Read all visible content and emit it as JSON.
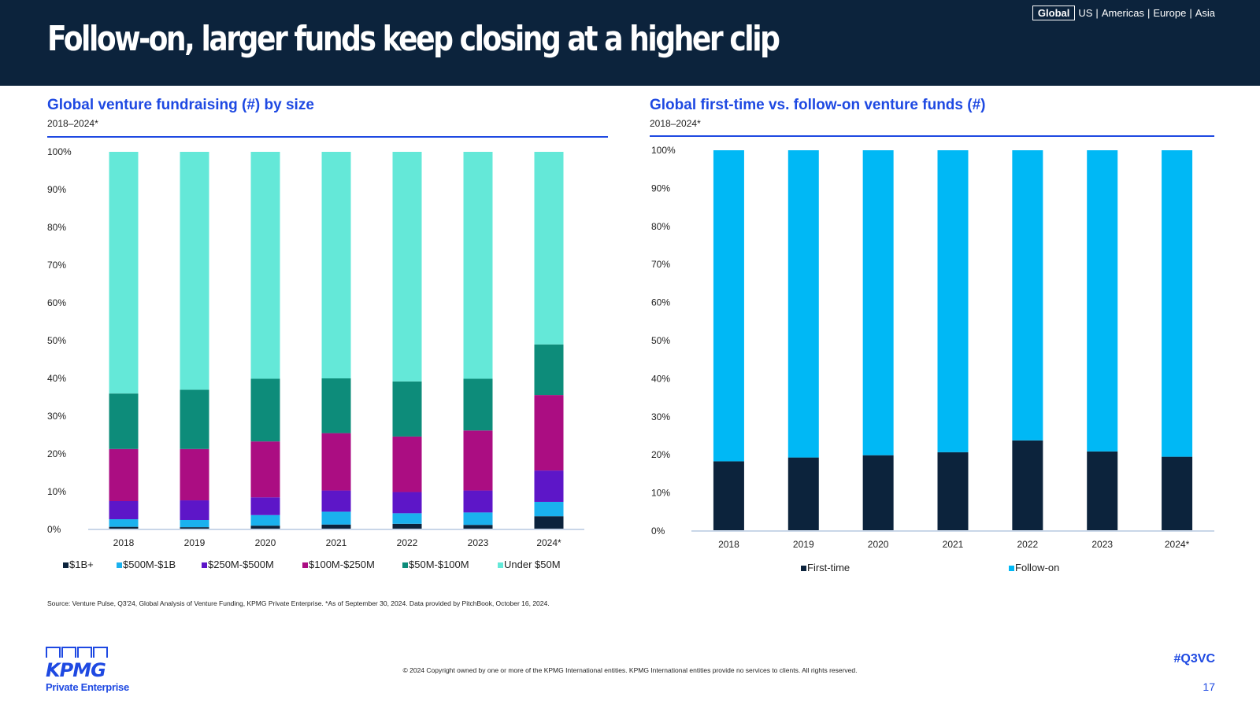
{
  "header": {
    "title": "Follow-on, larger funds keep closing at a higher clip",
    "nav": {
      "active": "Global",
      "items": [
        "US",
        "Americas",
        "Europe",
        "Asia"
      ]
    }
  },
  "left": {
    "title": "Global venture fundraising (#) by size",
    "subtitle": "2018–2024*"
  },
  "right": {
    "title": "Global first-time vs. follow-on venture funds (#)",
    "subtitle": "2018–2024*"
  },
  "chart_data": [
    {
      "type": "bar",
      "stacked": true,
      "title": "Global venture fundraising (#) by size",
      "categories": [
        "2018",
        "2019",
        "2020",
        "2021",
        "2022",
        "2023",
        "2024*"
      ],
      "ylim": [
        0,
        100
      ],
      "yticks": [
        "0%",
        "10%",
        "20%",
        "30%",
        "40%",
        "50%",
        "60%",
        "70%",
        "80%",
        "90%",
        "100%"
      ],
      "legend_position": "bottom",
      "series": [
        {
          "name": "$1B+",
          "color": "#0c233c",
          "values": [
            0.7,
            0.6,
            1.0,
            1.3,
            1.5,
            1.2,
            3.5
          ]
        },
        {
          "name": "$500M-$1B",
          "color": "#1ab1ee",
          "values": [
            2.0,
            1.9,
            2.8,
            3.4,
            2.8,
            3.3,
            3.8
          ]
        },
        {
          "name": "$250M-$500M",
          "color": "#5d16c8",
          "values": [
            4.8,
            5.2,
            4.7,
            5.6,
            5.6,
            5.8,
            8.3
          ]
        },
        {
          "name": "$100M-$250M",
          "color": "#ab0d82",
          "values": [
            13.8,
            13.6,
            14.8,
            15.2,
            14.7,
            15.9,
            20.0
          ]
        },
        {
          "name": "$50M-$100M",
          "color": "#0d8c7a",
          "values": [
            14.7,
            15.7,
            16.6,
            14.5,
            14.6,
            13.7,
            13.4
          ]
        },
        {
          "name": "Under $50M",
          "color": "#64e8d8",
          "values": [
            64.0,
            63.0,
            60.1,
            60.0,
            60.8,
            60.1,
            51.0
          ]
        }
      ]
    },
    {
      "type": "bar",
      "stacked": true,
      "title": "Global first-time vs. follow-on venture funds (#)",
      "categories": [
        "2018",
        "2019",
        "2020",
        "2021",
        "2022",
        "2023",
        "2024*"
      ],
      "ylim": [
        0,
        100
      ],
      "yticks": [
        "0%",
        "10%",
        "20%",
        "30%",
        "40%",
        "50%",
        "60%",
        "70%",
        "80%",
        "90%",
        "100%"
      ],
      "legend_position": "bottom",
      "series": [
        {
          "name": "First-time",
          "color": "#0c233c",
          "values": [
            18.3,
            19.3,
            19.9,
            20.7,
            23.8,
            20.9,
            19.5
          ]
        },
        {
          "name": "Follow-on",
          "color": "#00b8f5",
          "values": [
            81.7,
            80.7,
            80.1,
            79.3,
            76.2,
            79.1,
            80.5
          ]
        }
      ]
    }
  ],
  "footer": {
    "source": "Source: Venture Pulse, Q3'24, Global Analysis of Venture Funding, KPMG Private Enterprise. *As of September 30, 2024. Data provided by PitchBook, October 16, 2024.",
    "logo_text": "KPMG",
    "logo_sub": "Private Enterprise",
    "copyright": "© 2024 Copyright owned by one or more of the KPMG International entities. KPMG International entities provide no services to clients. All rights reserved.",
    "hashtag": "#Q3VC",
    "page": "17"
  }
}
